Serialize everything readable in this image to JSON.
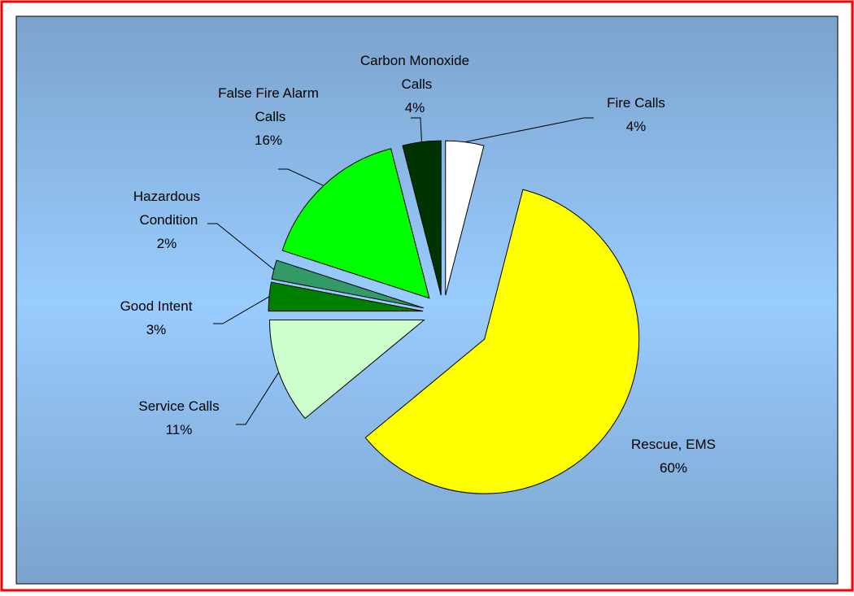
{
  "chart_data": {
    "type": "pie",
    "categories": [
      "Fire Calls",
      "Rescue, EMS",
      "Service Calls",
      "Good Intent",
      "Hazardous\nCondition",
      "False Fire Alarm\nCalls",
      "Carbon Monoxide\nCalls"
    ],
    "values": [
      4,
      60,
      11,
      3,
      2,
      16,
      4
    ],
    "value_labels": [
      "4%",
      "60%",
      "11%",
      "3%",
      "2%",
      "16%",
      "4%"
    ],
    "colors": [
      "#ffffff",
      "#ffff00",
      "#ccffcc",
      "#008000",
      "#339966",
      "#00ff00",
      "#003300"
    ]
  }
}
